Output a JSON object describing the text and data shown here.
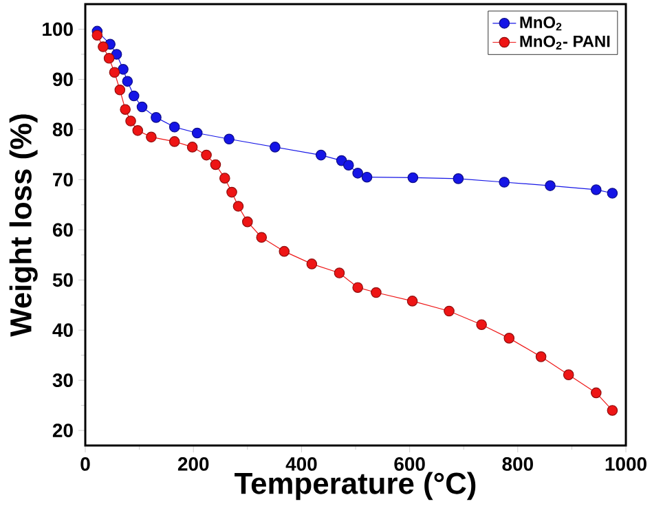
{
  "chart_data": {
    "type": "line",
    "xlabel": "Temperature (°C)",
    "ylabel": "Weight loss (%)",
    "xlim": [
      0,
      1000
    ],
    "ylim": [
      17,
      105
    ],
    "xticks": [
      0,
      200,
      400,
      600,
      800,
      1000
    ],
    "yticks": [
      20,
      30,
      40,
      50,
      60,
      70,
      80,
      90,
      100
    ],
    "grid": false,
    "legend": "top right",
    "marker": "circle",
    "line_style": "solid",
    "series": [
      {
        "name": "MnO$_{2}$",
        "color": "#1515e6",
        "x": [
          22,
          46,
          58,
          70,
          78,
          90,
          105,
          131,
          165,
          207,
          266,
          351,
          436,
          474,
          487,
          504,
          521,
          606,
          690,
          775,
          860,
          945,
          975
        ],
        "values": [
          99.6,
          97,
          95,
          92,
          89.6,
          86.7,
          84.5,
          82.4,
          80.5,
          79.3,
          78.1,
          76.5,
          74.9,
          73.8,
          72.9,
          71.3,
          70.5,
          70.4,
          70.2,
          69.5,
          68.8,
          68.0,
          67.3
        ]
      },
      {
        "name": "MnO$_{2}$- PANI",
        "color": "#ee1515",
        "x": [
          22,
          33,
          44,
          54,
          64,
          74,
          84,
          97,
          122,
          165,
          198,
          224,
          241,
          258,
          271,
          283,
          300,
          326,
          368,
          419,
          470,
          504,
          538,
          605,
          673,
          733,
          784,
          843,
          894,
          945,
          975
        ],
        "values": [
          98.8,
          96.5,
          94.2,
          91.4,
          87.9,
          84,
          81.7,
          79.8,
          78.5,
          77.6,
          76.5,
          74.9,
          73,
          70.3,
          67.5,
          64.7,
          61.6,
          58.5,
          55.7,
          53.2,
          51.4,
          48.5,
          47.5,
          45.8,
          43.8,
          41.1,
          38.4,
          34.7,
          31.1,
          27.5,
          24
        ]
      }
    ]
  }
}
